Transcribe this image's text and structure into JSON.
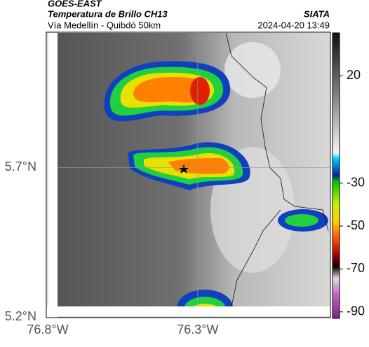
{
  "header": {
    "satellite": "GOES-EAST",
    "product": "Temperatura de Brillo CH13",
    "source": "SIATA",
    "region": "Vía Medellín - Quibdó 50km",
    "timestamp": "2024-04-20 13:49"
  },
  "map": {
    "xlim": [
      -76.8,
      -75.86
    ],
    "ylim": [
      5.2,
      6.15
    ],
    "xticks": [
      {
        "value": -76.8,
        "label": "76.8°W"
      },
      {
        "value": -76.3,
        "label": "76.3°W"
      }
    ],
    "yticks": [
      {
        "value": 5.7,
        "label": "5.7°N"
      },
      {
        "value": 5.2,
        "label": "5.2°N"
      }
    ]
  },
  "colorbar": {
    "lim": [
      -93,
      40
    ],
    "ticks": [
      20,
      -30,
      -50,
      -70,
      -90
    ]
  }
}
